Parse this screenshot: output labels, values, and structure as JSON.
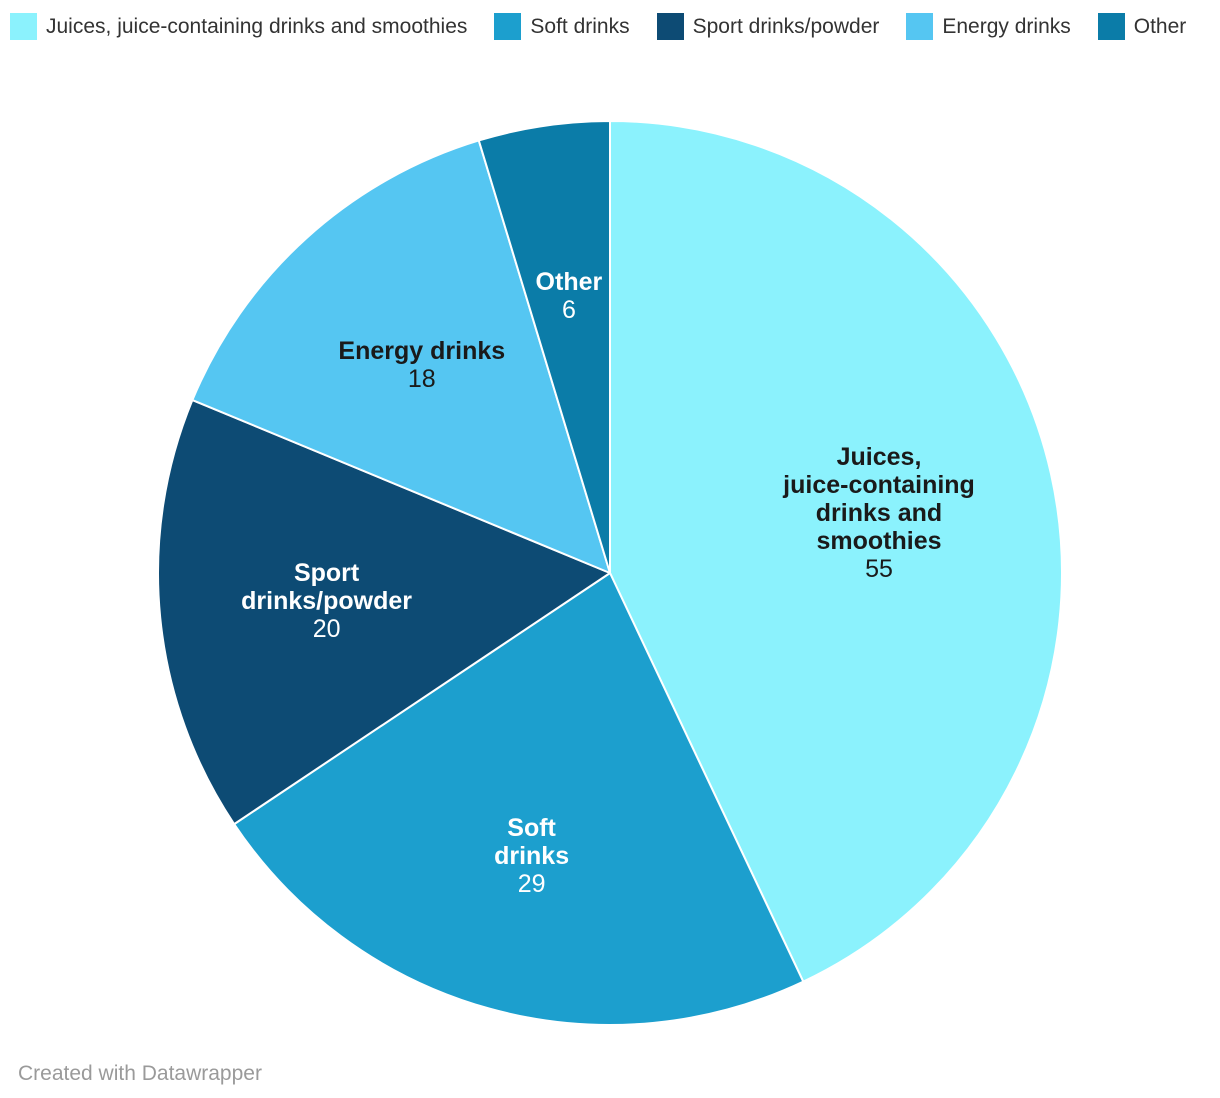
{
  "legend": {
    "items": [
      {
        "label": "Juices, juice-containing drinks and smoothies",
        "color": "#8BF2FD"
      },
      {
        "label": "Soft drinks",
        "color": "#1C9FCE"
      },
      {
        "label": "Sport drinks/powder",
        "color": "#0D4B74"
      },
      {
        "label": "Energy drinks",
        "color": "#55C6F2"
      },
      {
        "label": "Other",
        "color": "#0B7CA8"
      }
    ]
  },
  "chart_data": {
    "type": "pie",
    "title": "",
    "total": 128,
    "start_angle_deg": 0,
    "direction": "clockwise",
    "legend_position": "top",
    "slices": [
      {
        "label": "Juices, juice-containing drinks and smoothies",
        "label_lines": [
          "Juices,",
          "juice-containing",
          "drinks and",
          "smoothies"
        ],
        "value": 55,
        "color": "#8BF2FD",
        "text_color": "#1A1A1A",
        "label_r": 0.61
      },
      {
        "label": "Soft drinks",
        "label_lines": [
          "Soft",
          "drinks"
        ],
        "value": 29,
        "color": "#1C9FCE",
        "text_color": "#FFFFFF",
        "label_r": 0.65
      },
      {
        "label": "Sport drinks/powder",
        "label_lines": [
          "Sport",
          "drinks/powder"
        ],
        "value": 20,
        "color": "#0D4B74",
        "text_color": "#FFFFFF",
        "label_r": 0.63
      },
      {
        "label": "Energy drinks",
        "label_lines": [
          "Energy drinks"
        ],
        "value": 18,
        "color": "#55C6F2",
        "text_color": "#1A1A1A",
        "label_r": 0.62
      },
      {
        "label": "Other",
        "label_lines": [
          "Other"
        ],
        "value": 6,
        "color": "#0B7CA8",
        "text_color": "#FFFFFF",
        "label_r": 0.62
      }
    ]
  },
  "footer": {
    "credit": "Created with Datawrapper"
  }
}
